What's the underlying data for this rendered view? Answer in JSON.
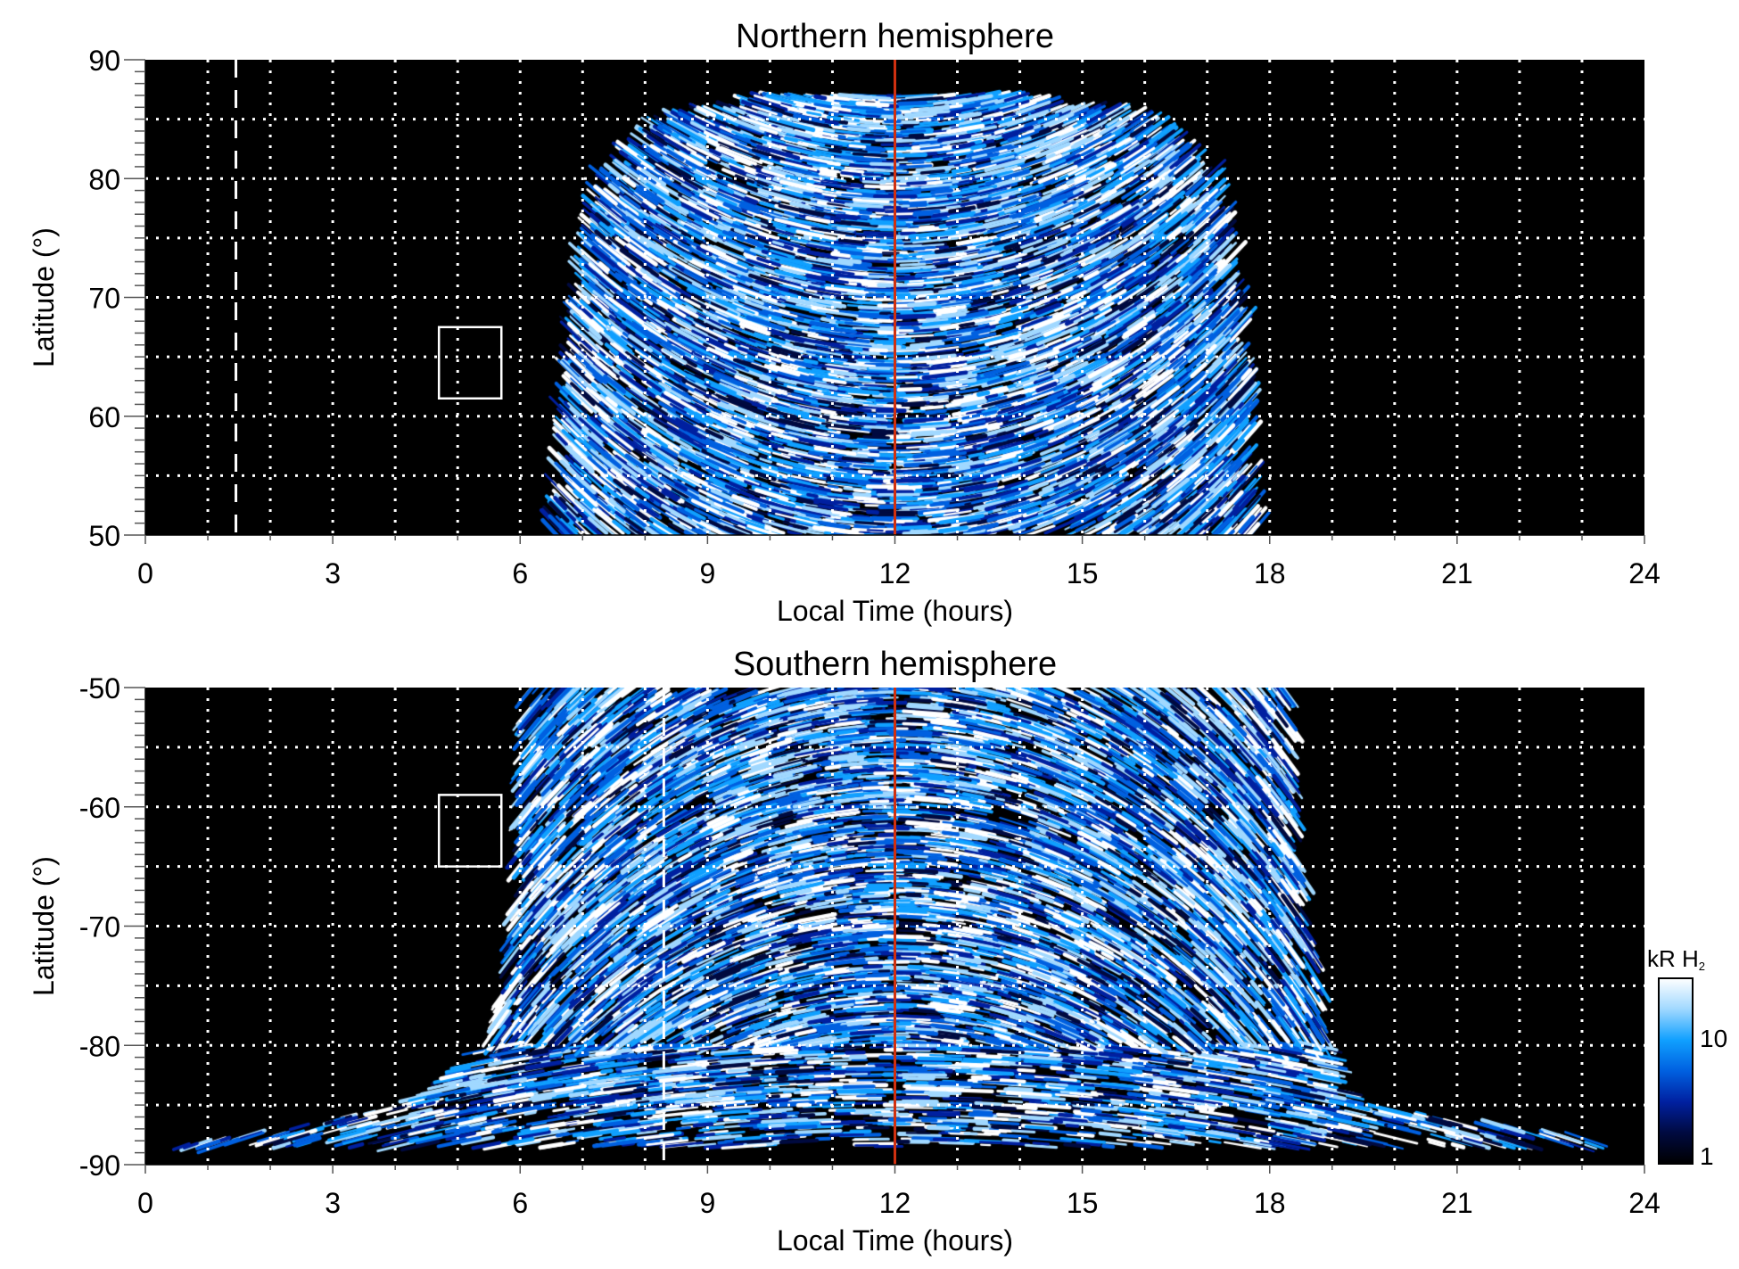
{
  "chart_data": [
    {
      "type": "heatmap",
      "title": "Northern hemisphere",
      "xlabel": "Local Time (hours)",
      "ylabel": "Latitude (°)",
      "xlim": [
        0,
        24
      ],
      "ylim": [
        50,
        90
      ],
      "xticks": [
        "0",
        "3",
        "6",
        "9",
        "12",
        "15",
        "18",
        "21",
        "24"
      ],
      "yticks": [
        "50",
        "60",
        "70",
        "80",
        "90"
      ],
      "grid": true,
      "coverage_envelope": [
        {
          "lat": 50,
          "lt_range": [
            6.5,
            17.8
          ]
        },
        {
          "lat": 60,
          "lt_range": [
            6.7,
            17.7
          ]
        },
        {
          "lat": 70,
          "lt_range": [
            6.9,
            17.5
          ]
        },
        {
          "lat": 80,
          "lt_range": [
            7.3,
            17.2
          ]
        },
        {
          "lat": 85,
          "lt_range": [
            8.3,
            16.1
          ]
        },
        {
          "lat": 87,
          "lt_range": [
            10.3,
            13.8
          ]
        }
      ],
      "markers": {
        "dashed_line_lt": 1.45,
        "red_line_lt": 12,
        "box": {
          "lt": [
            4.7,
            5.7
          ],
          "lat": [
            61.5,
            67.5
          ]
        }
      }
    },
    {
      "type": "heatmap",
      "title": "Southern hemisphere",
      "xlabel": "Local Time (hours)",
      "ylabel": "Latitude (°)",
      "xlim": [
        0,
        24
      ],
      "ylim": [
        -90,
        -50
      ],
      "xticks": [
        "0",
        "3",
        "6",
        "9",
        "12",
        "15",
        "18",
        "21",
        "24"
      ],
      "yticks": [
        "-90",
        "-80",
        "-70",
        "-60",
        "-50"
      ],
      "grid": true,
      "coverage_envelope": [
        {
          "lat": -50,
          "lt_range": [
            6.1,
            18.3
          ]
        },
        {
          "lat": -60,
          "lt_range": [
            6.0,
            18.4
          ]
        },
        {
          "lat": -70,
          "lt_range": [
            5.9,
            18.6
          ]
        },
        {
          "lat": -80,
          "lt_range": [
            5.5,
            19.0
          ]
        },
        {
          "lat": -85,
          "lt_range": [
            4.2,
            19.5
          ]
        },
        {
          "lat": -88.5,
          "lt_range": [
            0.5,
            24.0
          ]
        }
      ],
      "markers": {
        "dashed_line_lt": 8.3,
        "red_line_lt": 12,
        "box": {
          "lt": [
            4.7,
            5.7
          ],
          "lat": [
            -65,
            -59
          ]
        }
      }
    }
  ],
  "colorbar": {
    "label": "kR H",
    "label_sub": "2",
    "scale": "log",
    "range": [
      1,
      30
    ],
    "ticks": [
      "1",
      "10"
    ],
    "colors": [
      "#000000",
      "#000a40",
      "#0020a0",
      "#0060e0",
      "#10a0ff",
      "#a0d8ff",
      "#ffffff"
    ]
  }
}
